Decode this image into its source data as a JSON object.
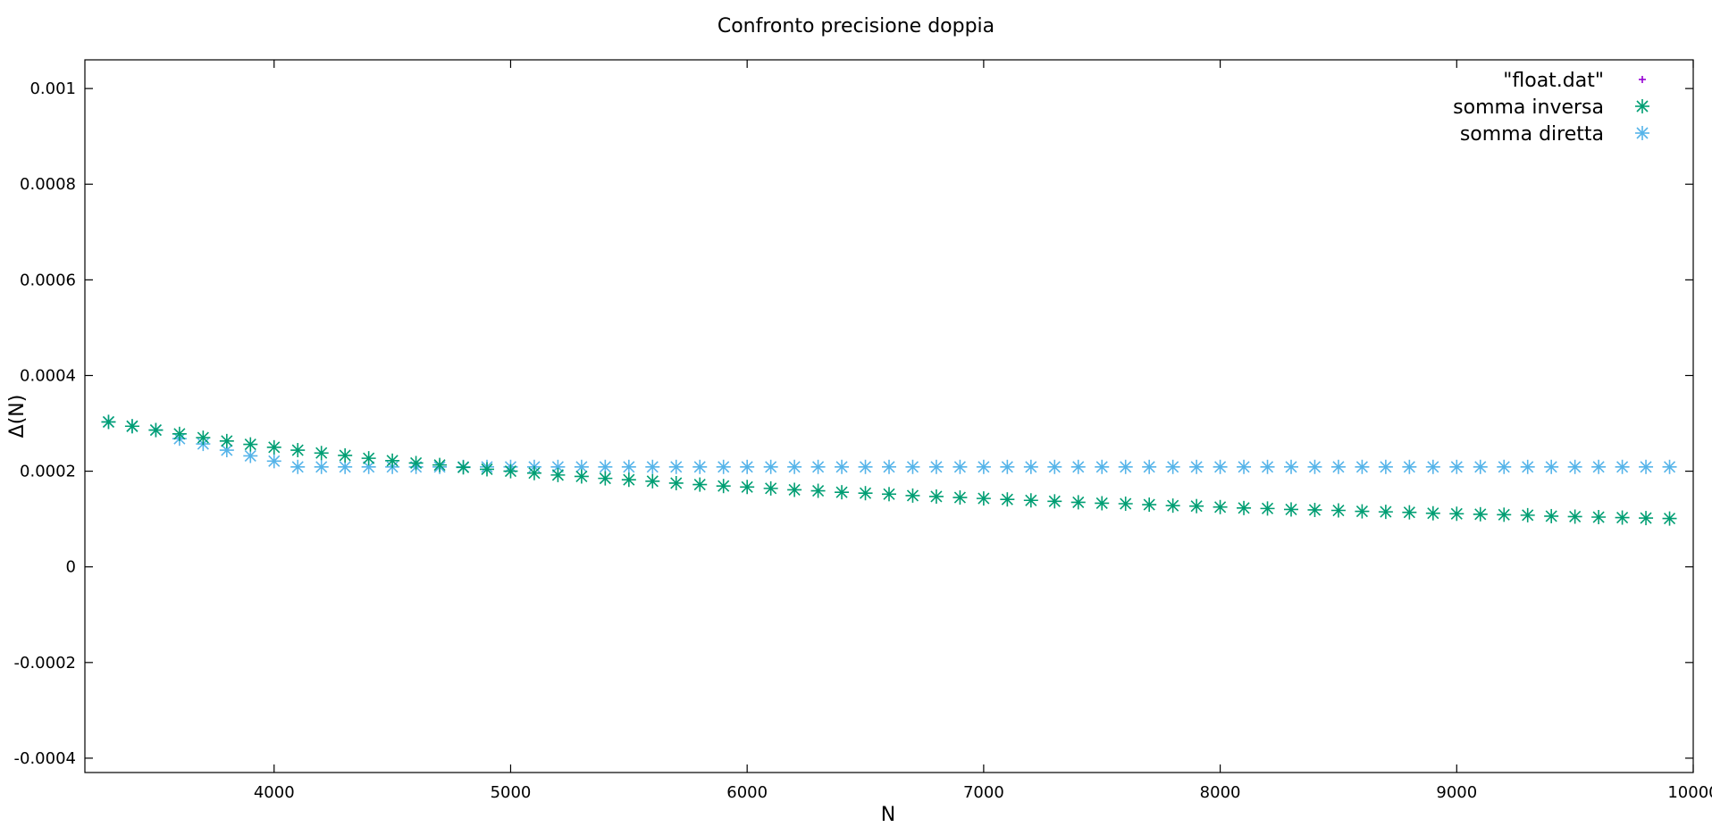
{
  "chart_data": {
    "type": "scatter",
    "title": "Confronto precisione doppia",
    "xlabel": "N",
    "ylabel": "Δ(N)",
    "xlim": [
      3200,
      10000
    ],
    "ylim": [
      -0.00043,
      0.00106
    ],
    "grid": false,
    "legend_position": "top-right",
    "x_ticks": [
      {
        "value": 4000,
        "label": "4000"
      },
      {
        "value": 5000,
        "label": "5000"
      },
      {
        "value": 6000,
        "label": "6000"
      },
      {
        "value": 7000,
        "label": "7000"
      },
      {
        "value": 8000,
        "label": "8000"
      },
      {
        "value": 9000,
        "label": "9000"
      },
      {
        "value": 10000,
        "label": "10000"
      }
    ],
    "y_ticks": [
      {
        "value": -0.0004,
        "label": "-0.0004"
      },
      {
        "value": -0.0002,
        "label": "-0.0002"
      },
      {
        "value": 0,
        "label": "0"
      },
      {
        "value": 0.0002,
        "label": "0.0002"
      },
      {
        "value": 0.0004,
        "label": "0.0004"
      },
      {
        "value": 0.0006,
        "label": "0.0006"
      },
      {
        "value": 0.0008,
        "label": "0.0008"
      },
      {
        "value": 0.001,
        "label": "0.001"
      }
    ],
    "x": [
      3300,
      3400,
      3500,
      3600,
      3700,
      3800,
      3900,
      4000,
      4100,
      4200,
      4300,
      4400,
      4500,
      4600,
      4700,
      4800,
      4900,
      5000,
      5100,
      5200,
      5300,
      5400,
      5500,
      5600,
      5700,
      5800,
      5900,
      6000,
      6100,
      6200,
      6300,
      6400,
      6500,
      6600,
      6700,
      6800,
      6900,
      7000,
      7100,
      7200,
      7300,
      7400,
      7500,
      7600,
      7700,
      7800,
      7900,
      8000,
      8100,
      8200,
      8300,
      8400,
      8500,
      8600,
      8700,
      8800,
      8900,
      9000,
      9100,
      9200,
      9300,
      9400,
      9500,
      9600,
      9700,
      9800,
      9900
    ],
    "series": [
      {
        "name": "\"float.dat\"",
        "color": "#9400d3",
        "marker": "plus",
        "values": []
      },
      {
        "name": "somma inversa",
        "color": "#009e73",
        "marker": "asterisk",
        "values": [
          0.000303,
          0.000294,
          0.000286,
          0.000278,
          0.00027,
          0.000263,
          0.000256,
          0.00025,
          0.000244,
          0.000238,
          0.000233,
          0.000227,
          0.000222,
          0.000217,
          0.000213,
          0.000208,
          0.000204,
          0.0002,
          0.000196,
          0.000192,
          0.000189,
          0.000185,
          0.000182,
          0.000179,
          0.000175,
          0.000172,
          0.000169,
          0.000167,
          0.000164,
          0.000161,
          0.000159,
          0.000156,
          0.000154,
          0.000152,
          0.000149,
          0.000147,
          0.000145,
          0.000143,
          0.000141,
          0.000139,
          0.000137,
          0.000135,
          0.000133,
          0.000132,
          0.00013,
          0.000128,
          0.000127,
          0.000125,
          0.000123,
          0.000122,
          0.00012,
          0.000119,
          0.000118,
          0.000116,
          0.000115,
          0.000114,
          0.000112,
          0.000111,
          0.00011,
          0.000109,
          0.000108,
          0.000106,
          0.000105,
          0.000104,
          0.000103,
          0.000102,
          0.000101
        ]
      },
      {
        "name": "somma diretta",
        "color": "#56b4e9",
        "marker": "asterisk",
        "values": [
          0.000303,
          0.000294,
          0.000286,
          0.000268,
          0.000257,
          0.000244,
          0.000232,
          0.000221,
          0.000209,
          0.000209,
          0.000209,
          0.000209,
          0.000209,
          0.000209,
          0.000209,
          0.000209,
          0.000209,
          0.000209,
          0.000209,
          0.000209,
          0.000209,
          0.000209,
          0.000209,
          0.000209,
          0.000209,
          0.000209,
          0.000209,
          0.000209,
          0.000209,
          0.000209,
          0.000209,
          0.000209,
          0.000209,
          0.000209,
          0.000209,
          0.000209,
          0.000209,
          0.000209,
          0.000209,
          0.000209,
          0.000209,
          0.000209,
          0.000209,
          0.000209,
          0.000209,
          0.000209,
          0.000209,
          0.000209,
          0.000209,
          0.000209,
          0.000209,
          0.000209,
          0.000209,
          0.000209,
          0.000209,
          0.000209,
          0.000209,
          0.000209,
          0.000209,
          0.000209,
          0.000209,
          0.000209,
          0.000209,
          0.000209,
          0.000209,
          0.000209,
          0.000209
        ]
      }
    ]
  }
}
